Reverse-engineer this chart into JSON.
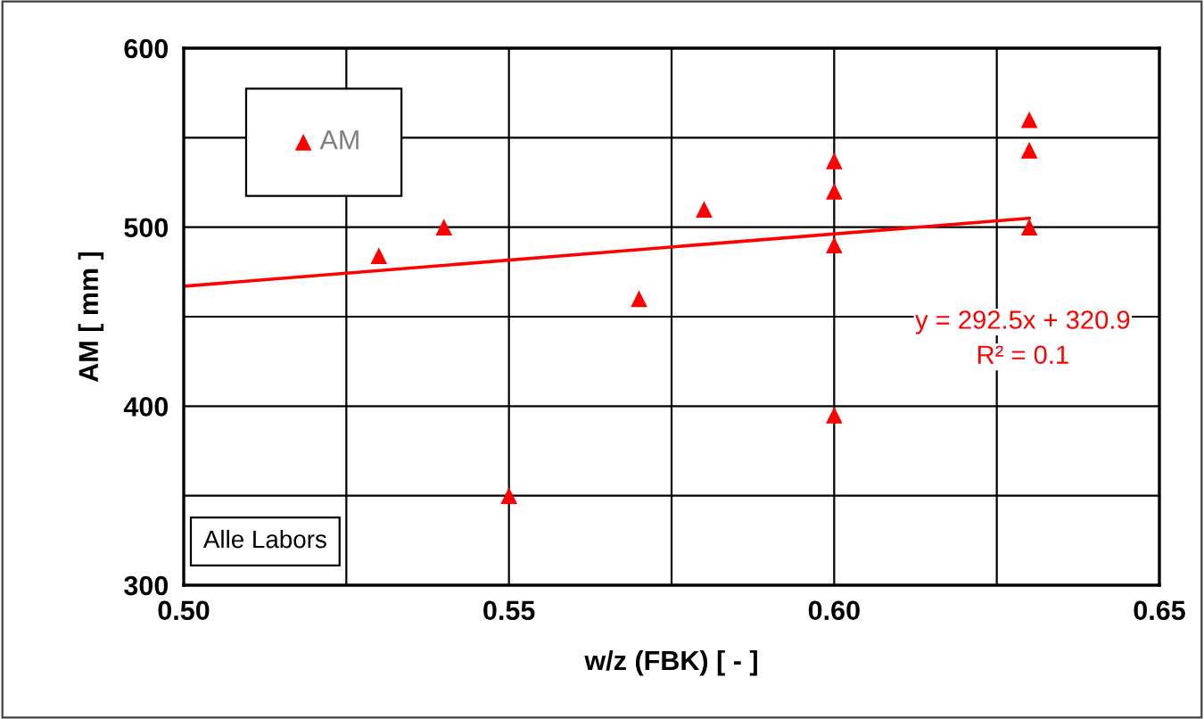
{
  "chart_data": {
    "type": "scatter",
    "xlabel": "w/z (FBK) [ - ]",
    "ylabel": "AM [ mm ]",
    "xlim": [
      0.5,
      0.65
    ],
    "ylim": [
      300,
      600
    ],
    "xticks": [
      {
        "value": 0.5,
        "label": "0.50"
      },
      {
        "value": 0.525,
        "label": null
      },
      {
        "value": 0.55,
        "label": "0.55"
      },
      {
        "value": 0.575,
        "label": null
      },
      {
        "value": 0.6,
        "label": "0.60"
      },
      {
        "value": 0.625,
        "label": null
      },
      {
        "value": 0.65,
        "label": "0.65"
      }
    ],
    "yticks": [
      300,
      {
        "value": 350,
        "label": null
      },
      400,
      {
        "value": 450,
        "label": null
      },
      500,
      {
        "value": 550,
        "label": null
      },
      600
    ],
    "grid": true,
    "legend": "top left",
    "series": [
      {
        "name": "AM",
        "marker": "triangle",
        "color": "#ff0000",
        "x": [
          0.53,
          0.54,
          0.55,
          0.57,
          0.58,
          0.6,
          0.6,
          0.6,
          0.6,
          0.63,
          0.63,
          0.63
        ],
        "values": [
          484,
          500,
          350,
          460,
          510,
          537,
          520,
          490,
          395,
          560,
          543,
          500
        ]
      },
      {
        "type": "line",
        "color": "#ff0000",
        "x": [
          0.5,
          0.63
        ],
        "values": [
          467,
          505
        ]
      }
    ],
    "annotations": [
      "Alle Labors",
      "y = 292.5x + 320.9",
      "R² = 0.1"
    ]
  }
}
